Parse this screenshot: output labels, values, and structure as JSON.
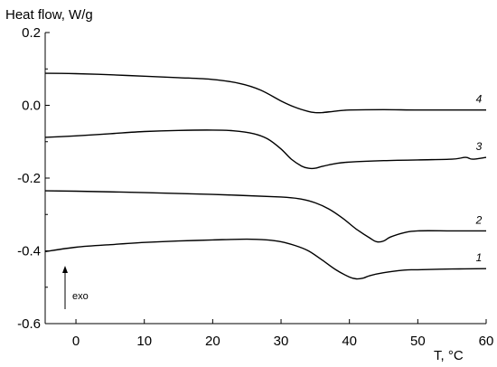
{
  "chart_data": {
    "type": "line",
    "title": "",
    "ylabel": "Heat flow, W/g",
    "xlabel": "T, °C",
    "xlim": [
      -4.5,
      60
    ],
    "ylim": [
      -0.6,
      0.2
    ],
    "xticks": [
      0,
      10,
      20,
      30,
      40,
      50,
      60
    ],
    "yticks": [
      0.2,
      0.0,
      -0.2,
      -0.4,
      -0.6
    ],
    "ytick_labels": [
      "0.2",
      "0.0",
      "-0.2",
      "-0.4",
      "-0.6"
    ],
    "grid": false,
    "annotation": "exo",
    "series": [
      {
        "name": "4",
        "x": [
          -4.5,
          0,
          5,
          10,
          15,
          20,
          24,
          27,
          30,
          32,
          34,
          35,
          36,
          38,
          40,
          45,
          50,
          55,
          60
        ],
        "y": [
          0.088,
          0.087,
          0.084,
          0.08,
          0.076,
          0.071,
          0.06,
          0.042,
          0.012,
          -0.005,
          -0.017,
          -0.02,
          -0.02,
          -0.016,
          -0.013,
          -0.012,
          -0.013,
          -0.013,
          -0.013
        ]
      },
      {
        "name": "3",
        "x": [
          -4.5,
          0,
          5,
          10,
          15,
          20,
          23,
          26,
          28,
          30,
          31.5,
          33,
          34,
          35,
          36,
          38,
          40,
          45,
          50,
          55,
          57,
          58,
          60
        ],
        "y": [
          -0.088,
          -0.084,
          -0.078,
          -0.072,
          -0.069,
          -0.068,
          -0.07,
          -0.078,
          -0.092,
          -0.12,
          -0.148,
          -0.167,
          -0.173,
          -0.173,
          -0.168,
          -0.16,
          -0.156,
          -0.152,
          -0.15,
          -0.148,
          -0.143,
          -0.148,
          -0.143
        ]
      },
      {
        "name": "2",
        "x": [
          -4.5,
          0,
          10,
          20,
          30,
          33,
          35,
          37,
          39,
          41,
          43,
          44,
          45,
          46,
          48,
          50,
          55,
          60
        ],
        "y": [
          -0.235,
          -0.236,
          -0.24,
          -0.245,
          -0.252,
          -0.258,
          -0.268,
          -0.285,
          -0.31,
          -0.34,
          -0.365,
          -0.375,
          -0.373,
          -0.362,
          -0.35,
          -0.345,
          -0.345,
          -0.345
        ]
      },
      {
        "name": "1",
        "x": [
          -4.5,
          0,
          5,
          10,
          15,
          20,
          25,
          28,
          30,
          32,
          34,
          36,
          38,
          40,
          41,
          42,
          43,
          45,
          48,
          50,
          55,
          60
        ],
        "y": [
          -0.402,
          -0.39,
          -0.383,
          -0.377,
          -0.373,
          -0.37,
          -0.368,
          -0.37,
          -0.375,
          -0.385,
          -0.4,
          -0.425,
          -0.452,
          -0.472,
          -0.477,
          -0.475,
          -0.468,
          -0.46,
          -0.453,
          -0.452,
          -0.45,
          -0.449
        ]
      }
    ]
  }
}
